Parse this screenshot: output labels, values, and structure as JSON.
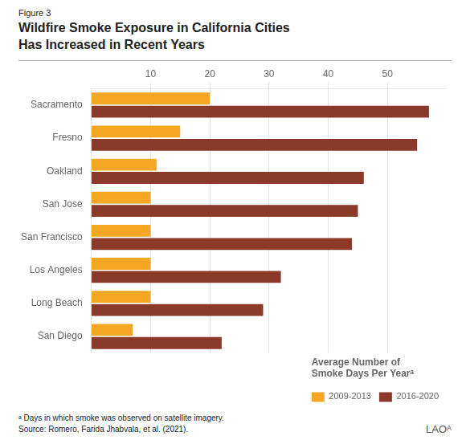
{
  "chart_data": {
    "type": "bar",
    "orientation": "horizontal",
    "figure_label": "Figure 3",
    "title": "Wildfire Smoke Exposure in California Cities\nHas Increased in Recent Years",
    "categories": [
      "Sacramento",
      "Fresno",
      "Oakland",
      "San Jose",
      "San Francisco",
      "Los Angeles",
      "Long Beach",
      "San Diego"
    ],
    "series": [
      {
        "name": "2009-2013",
        "color": "#F5A623",
        "values": [
          20,
          15,
          11,
          10,
          10,
          10,
          10,
          7
        ]
      },
      {
        "name": "2016-2020",
        "color": "#8B3A2A",
        "values": [
          57,
          55,
          46,
          45,
          44,
          32,
          29,
          22
        ]
      }
    ],
    "xlim": [
      0,
      60
    ],
    "xticks": [
      10,
      20,
      30,
      40,
      50
    ],
    "grid": true,
    "legend": "lower right",
    "legend_title": "Average Number of\nSmoke Days Per Yearᵃ",
    "footnotes": [
      "ᵃ Days in which smoke was observed on satellite imagery.",
      "Source: Romero, Farida Jhabvala, et al. (2021)."
    ],
    "logo": "LAOᴬ"
  }
}
